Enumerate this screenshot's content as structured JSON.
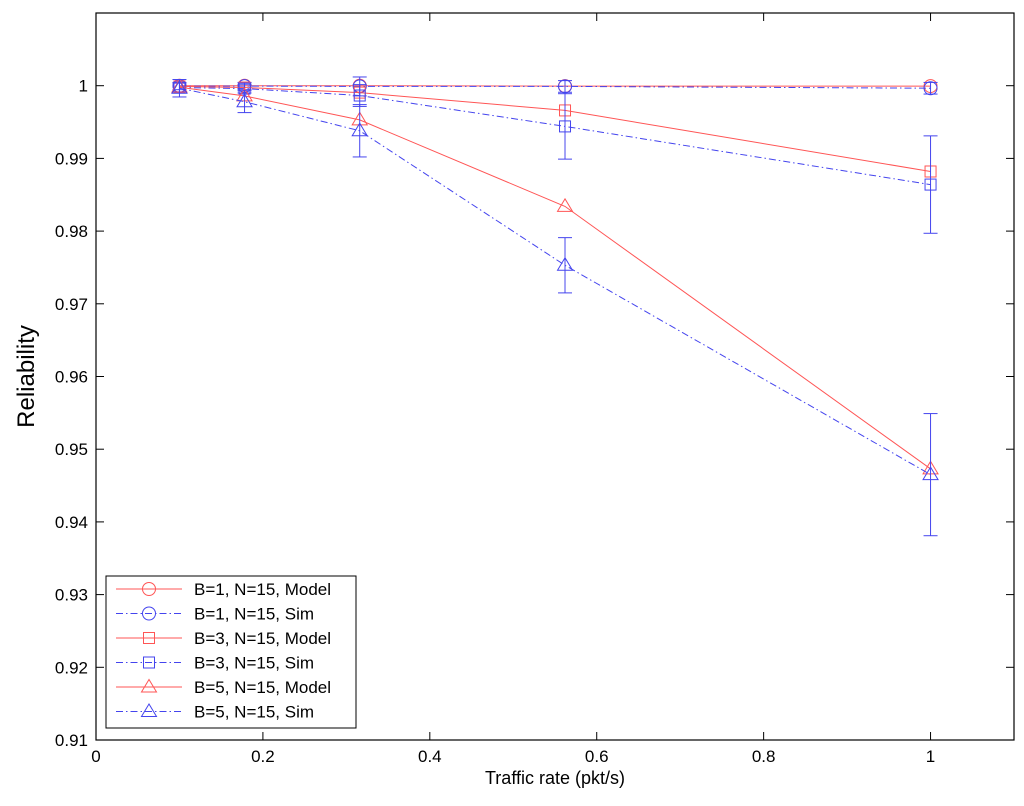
{
  "chart_data": {
    "type": "line",
    "title": "",
    "xlabel": "Traffic rate (pkt/s)",
    "ylabel": "Reliability",
    "xlim": [
      0,
      1.1
    ],
    "ylim": [
      0.91,
      1.01
    ],
    "xticks": [
      0,
      0.2,
      0.4,
      0.6,
      0.8,
      1
    ],
    "xtick_labels": [
      "0",
      "0.2",
      "0.4",
      "0.6",
      "0.8",
      "1"
    ],
    "yticks": [
      0.91,
      0.92,
      0.93,
      0.94,
      0.95,
      0.96,
      0.97,
      0.98,
      0.99,
      1
    ],
    "ytick_labels": [
      "0.91",
      "0.92",
      "0.93",
      "0.94",
      "0.95",
      "0.96",
      "0.97",
      "0.98",
      "0.99",
      "1"
    ],
    "grid": false,
    "legend_position": "bottom-left",
    "x": [
      0.1,
      0.178,
      0.316,
      0.562,
      1.0
    ],
    "series": [
      {
        "name": "B=1, N=15, Model",
        "color": "#ff5555",
        "line": "solid",
        "marker": "circle",
        "values": [
          1.0,
          1.0,
          1.0,
          0.99995,
          0.99995
        ]
      },
      {
        "name": "B=1, N=15, Sim",
        "color": "#4444ee",
        "line": "dashdot",
        "marker": "circle",
        "values": [
          0.99995,
          0.99995,
          0.9999,
          0.9999,
          0.99965
        ],
        "err": [
          0.0005,
          0.0005,
          0.0013,
          0.0008,
          0.0008
        ]
      },
      {
        "name": "B=3, N=15, Model",
        "color": "#ff5555",
        "line": "solid",
        "marker": "square",
        "values": [
          0.9999,
          0.99975,
          0.99905,
          0.9966,
          0.9882
        ]
      },
      {
        "name": "B=3, N=15, Sim",
        "color": "#4444ee",
        "line": "dashdot",
        "marker": "square",
        "values": [
          0.99975,
          0.9996,
          0.99865,
          0.9944,
          0.9864
        ],
        "err": [
          0.0006,
          0.0006,
          0.0015,
          0.0045,
          0.0067
        ]
      },
      {
        "name": "B=5, N=15, Model",
        "color": "#ff5555",
        "line": "solid",
        "marker": "triangle",
        "values": [
          0.9998,
          0.9986,
          0.9953,
          0.9834,
          0.9473
        ]
      },
      {
        "name": "B=5, N=15, Sim",
        "color": "#4444ee",
        "line": "dashdot",
        "marker": "triangle",
        "values": [
          0.99965,
          0.9978,
          0.9938,
          0.9753,
          0.9465
        ],
        "err": [
          0.0012,
          0.0015,
          0.0036,
          0.0038,
          0.0084
        ]
      }
    ]
  }
}
